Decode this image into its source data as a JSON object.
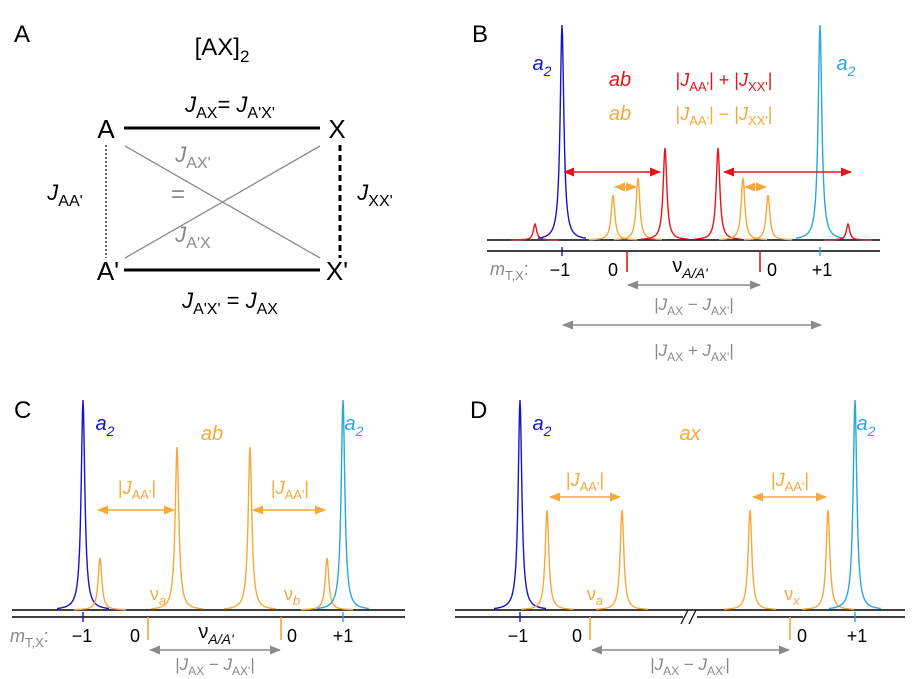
{
  "panel_a": {
    "label": "A",
    "title": [
      {
        "text": "[AX]"
      },
      {
        "text": "2",
        "sub": true
      }
    ],
    "nodes": [
      "A",
      "X",
      "A'",
      "X'"
    ],
    "j_top": [
      {
        "text": "J",
        "italic": true
      },
      {
        "text": "AX",
        "sub": true
      },
      {
        "text": "= "
      },
      {
        "text": "J",
        "italic": true
      },
      {
        "text": "A'X'",
        "sub": true
      }
    ],
    "j_aa": [
      {
        "text": "J",
        "italic": true
      },
      {
        "text": "AA'",
        "sub": true
      }
    ],
    "j_xx": [
      {
        "text": "J",
        "italic": true
      },
      {
        "text": "XX'",
        "sub": true
      }
    ],
    "j_ax_prime": [
      {
        "text": "J",
        "italic": true
      },
      {
        "text": "AX'",
        "sub": true
      }
    ],
    "equals": "=",
    "j_a_prime_x": [
      {
        "text": "J",
        "italic": true
      },
      {
        "text": "A'X",
        "sub": true
      }
    ],
    "j_bottom": [
      {
        "text": "J",
        "italic": true
      },
      {
        "text": "A'X'",
        "sub": true
      },
      {
        "text": " = "
      },
      {
        "text": "J",
        "italic": true
      },
      {
        "text": "AX",
        "sub": true
      }
    ]
  },
  "panel_b": {
    "label": "B",
    "a2_left": [
      {
        "text": "a",
        "italic": true
      },
      {
        "text": "2",
        "sub": true,
        "italic": true
      }
    ],
    "a2_right": [
      {
        "text": "a",
        "italic": true
      },
      {
        "text": "2",
        "sub": true,
        "italic": true
      }
    ],
    "ab_sum": [
      {
        "text": "ab",
        "italic": true
      }
    ],
    "sum": [
      {
        "text": "|"
      },
      {
        "text": "J",
        "italic": true
      },
      {
        "text": "AA'",
        "sub": true
      },
      {
        "text": "| + |"
      },
      {
        "text": "J",
        "italic": true
      },
      {
        "text": "XX'",
        "sub": true
      },
      {
        "text": "|"
      }
    ],
    "ab_diff": [
      {
        "text": "ab",
        "italic": true
      }
    ],
    "diff": [
      {
        "text": "|"
      },
      {
        "text": "J",
        "italic": true
      },
      {
        "text": "AA'",
        "sub": true
      },
      {
        "text": "| − |"
      },
      {
        "text": "J",
        "italic": true
      },
      {
        "text": "XX'",
        "sub": true
      },
      {
        "text": "|"
      }
    ],
    "m_label": [
      {
        "text": "m",
        "italic": true
      },
      {
        "text": "T,X",
        "sub": true
      },
      {
        "text": ":"
      }
    ],
    "tick_labels": [
      "−1",
      "0",
      "0",
      "+1"
    ],
    "nu": [
      {
        "text": "ν"
      },
      {
        "text": "A/A'",
        "sub": true,
        "italic": true
      }
    ],
    "delta": [
      {
        "text": "|"
      },
      {
        "text": "J",
        "italic": true
      },
      {
        "text": "AX",
        "sub": true
      },
      {
        "text": " − "
      },
      {
        "text": "J",
        "italic": true
      },
      {
        "text": "AX'",
        "sub": true
      },
      {
        "text": "|"
      }
    ],
    "total": [
      {
        "text": "|"
      },
      {
        "text": "J",
        "italic": true
      },
      {
        "text": "AX",
        "sub": true
      },
      {
        "text": " + "
      },
      {
        "text": "J",
        "italic": true
      },
      {
        "text": "AX'",
        "sub": true
      },
      {
        "text": "|"
      }
    ]
  },
  "panel_c": {
    "label": "C",
    "a2_left": [
      {
        "text": "a",
        "italic": true
      },
      {
        "text": "2",
        "sub": true,
        "italic": true
      }
    ],
    "ab": [
      {
        "text": "ab",
        "italic": true
      }
    ],
    "a2_right": [
      {
        "text": "a",
        "italic": true
      },
      {
        "text": "2",
        "sub": true,
        "italic": true
      }
    ],
    "j_aa_left": [
      {
        "text": "|"
      },
      {
        "text": "J",
        "italic": true
      },
      {
        "text": "AA'",
        "sub": true
      },
      {
        "text": "|"
      }
    ],
    "j_aa_right": [
      {
        "text": "|"
      },
      {
        "text": "J",
        "italic": true
      },
      {
        "text": "AA'",
        "sub": true
      },
      {
        "text": "|"
      }
    ],
    "nu_a": [
      {
        "text": "ν"
      },
      {
        "text": "a",
        "sub": true,
        "italic": true
      }
    ],
    "nu_b": [
      {
        "text": "ν"
      },
      {
        "text": "b",
        "sub": true,
        "italic": true
      }
    ],
    "m_label": [
      {
        "text": "m",
        "italic": true
      },
      {
        "text": "T,X",
        "sub": true
      },
      {
        "text": ":"
      }
    ],
    "tick_labels": [
      "−1",
      "0",
      "0",
      "+1"
    ],
    "nu": [
      {
        "text": "ν"
      },
      {
        "text": "A/A'",
        "sub": true,
        "italic": true
      }
    ],
    "delta": [
      {
        "text": "|"
      },
      {
        "text": "J",
        "italic": true
      },
      {
        "text": "AX",
        "sub": true
      },
      {
        "text": " − "
      },
      {
        "text": "J",
        "italic": true
      },
      {
        "text": "AX'",
        "sub": true
      },
      {
        "text": "|"
      }
    ]
  },
  "panel_d": {
    "label": "D",
    "a2_left": [
      {
        "text": "a",
        "italic": true
      },
      {
        "text": "2",
        "sub": true,
        "italic": true
      }
    ],
    "ax": [
      {
        "text": "ax",
        "italic": true
      }
    ],
    "a2_right": [
      {
        "text": "a",
        "italic": true
      },
      {
        "text": "2",
        "sub": true,
        "italic": true
      }
    ],
    "j_aa_left": [
      {
        "text": "|"
      },
      {
        "text": "J",
        "italic": true
      },
      {
        "text": "AA'",
        "sub": true
      },
      {
        "text": "|"
      }
    ],
    "j_aa_right": [
      {
        "text": "|"
      },
      {
        "text": "J",
        "italic": true
      },
      {
        "text": "AA'",
        "sub": true
      },
      {
        "text": "|"
      }
    ],
    "nu_a": [
      {
        "text": "ν"
      },
      {
        "text": "a",
        "sub": true,
        "italic": true
      }
    ],
    "nu_x": [
      {
        "text": "ν"
      },
      {
        "text": "x",
        "sub": true,
        "italic": true
      }
    ],
    "tick_labels": [
      "−1",
      "0",
      "0",
      "+1"
    ],
    "delta": [
      {
        "text": "|"
      },
      {
        "text": "J",
        "italic": true
      },
      {
        "text": "AX",
        "sub": true
      },
      {
        "text": " − "
      },
      {
        "text": "J",
        "italic": true
      },
      {
        "text": "AX'",
        "sub": true
      },
      {
        "text": "|"
      }
    ]
  }
}
